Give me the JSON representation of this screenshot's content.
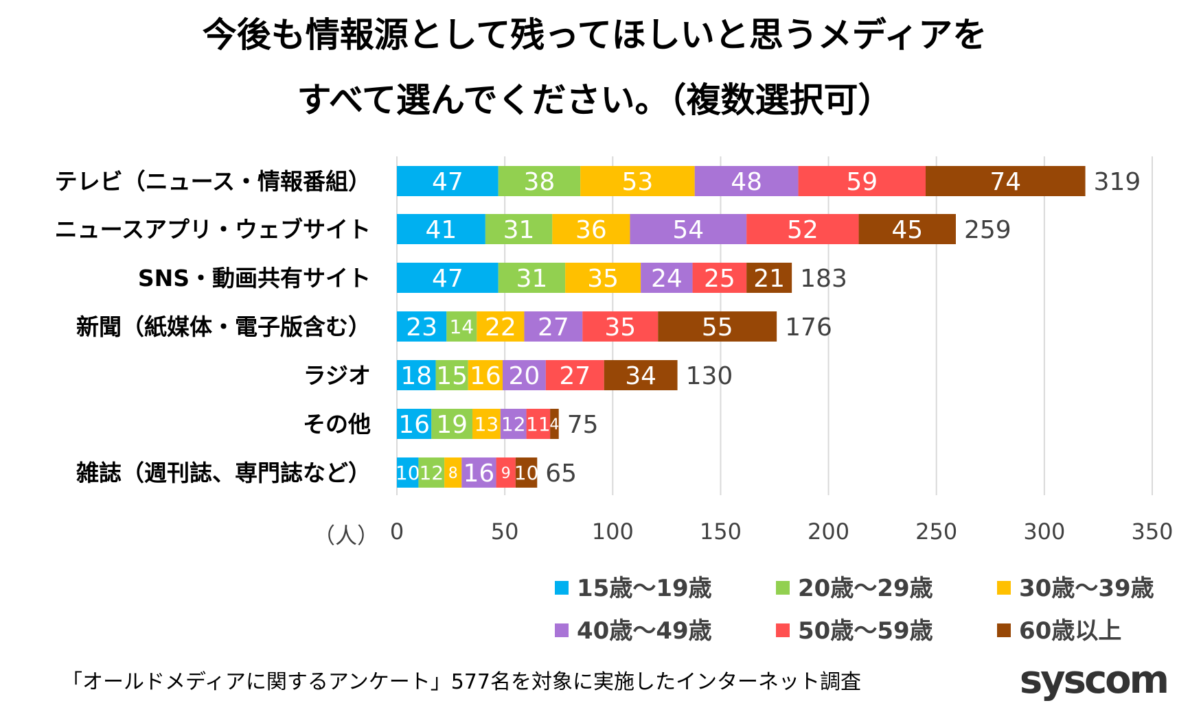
{
  "chart_data": {
    "type": "bar",
    "orientation": "horizontal",
    "stacked": true,
    "title": "今後も情報源として残ってほしいと思うメディアを\nすべて選んでください。（複数選択可）",
    "xlabel": "（人）",
    "xlim": [
      0,
      350
    ],
    "xticks": [
      "0",
      "50",
      "100",
      "150",
      "200",
      "250",
      "300",
      "350"
    ],
    "grid": true,
    "legend_position": "bottom-right",
    "categories": [
      "テレビ（ニュース・情報番組）",
      "ニュースアプリ・ウェブサイト",
      "SNS・動画共有サイト",
      "新聞（紙媒体・電子版含む）",
      "ラジオ",
      "その他",
      "雑誌（週刊誌、専門誌など）"
    ],
    "totals": [
      319,
      259,
      183,
      176,
      130,
      75,
      65
    ],
    "series": [
      {
        "name": "15歳～19歳",
        "color": "#00b0f0",
        "values": [
          47,
          41,
          47,
          23,
          18,
          16,
          10
        ]
      },
      {
        "name": "20歳～29歳",
        "color": "#92d050",
        "values": [
          38,
          31,
          31,
          14,
          15,
          19,
          12
        ]
      },
      {
        "name": "30歳～39歳",
        "color": "#ffc000",
        "values": [
          53,
          36,
          35,
          22,
          16,
          13,
          8
        ]
      },
      {
        "name": "40歳～49歳",
        "color": "#a974d6",
        "values": [
          48,
          54,
          24,
          27,
          20,
          12,
          16
        ]
      },
      {
        "name": "50歳～59歳",
        "color": "#ff5050",
        "values": [
          59,
          52,
          25,
          35,
          27,
          11,
          9
        ]
      },
      {
        "name": "60歳以上",
        "color": "#974706",
        "values": [
          74,
          45,
          21,
          55,
          34,
          4,
          10
        ]
      }
    ]
  },
  "footer": {
    "note": "「オールドメディアに関するアンケート」577名を対象に実施したインターネット調査",
    "logo": "syscom"
  }
}
